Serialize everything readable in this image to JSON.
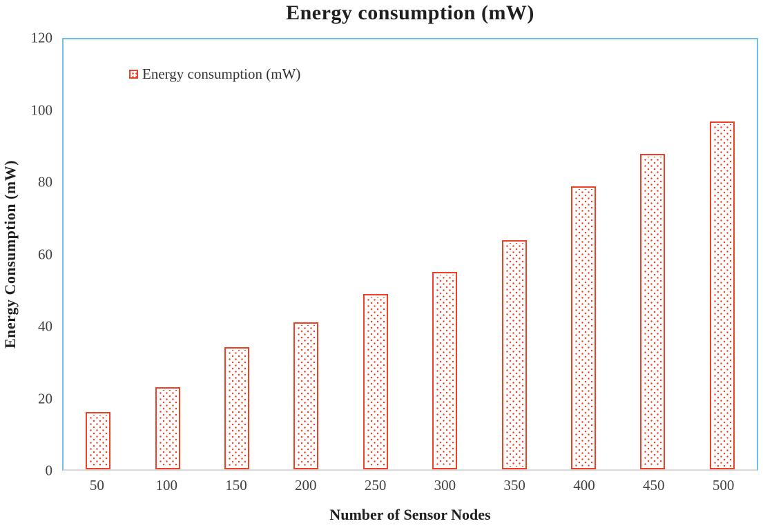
{
  "chart_data": {
    "type": "bar",
    "title": "Energy consumption (mW)",
    "legend": [
      "Energy consumption (mW)"
    ],
    "legend_position": "top-left-inside",
    "xlabel": "Number of Sensor Nodes",
    "ylabel": "Energy Consumption (mW)",
    "categories": [
      "50",
      "100",
      "150",
      "200",
      "250",
      "300",
      "350",
      "400",
      "450",
      "500"
    ],
    "values": [
      16,
      23,
      34,
      41,
      49,
      55,
      64,
      79,
      88,
      97
    ],
    "ylim": [
      0,
      120
    ],
    "yticks": [
      0,
      20,
      40,
      60,
      80,
      100,
      120
    ],
    "grid": false,
    "bar_fill_style": "dotted-pattern",
    "colors": {
      "bar": "#ee4123",
      "plot_border": "#70bde9",
      "baseline": "#d9d9d9",
      "tick_text": "#404040",
      "title_text": "#1f1f1f"
    }
  }
}
